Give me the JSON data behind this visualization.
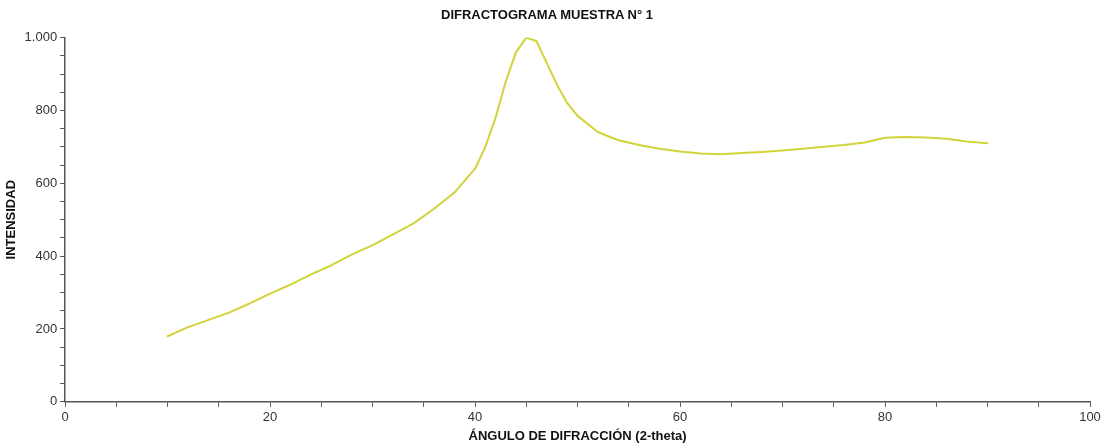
{
  "chart_data": {
    "type": "line",
    "title": "DIFRACTOGRAMA MUESTRA N° 1",
    "xlabel": "ÁNGULO DE DIFRACCIÓN (2-theta)",
    "ylabel": "INTENSIDAD",
    "series": [
      {
        "color": "#d2d23a",
        "x": [
          10,
          12,
          14,
          16,
          18,
          20,
          22,
          24,
          26,
          28,
          30,
          32,
          34,
          36,
          38,
          40,
          41,
          42,
          43,
          44,
          45,
          46,
          47,
          48,
          49,
          50,
          52,
          54,
          56,
          58,
          60,
          62,
          64,
          66,
          68,
          70,
          72,
          74,
          76,
          78,
          80,
          82,
          84,
          86,
          88,
          90
        ],
        "values": [
          180,
          205,
          225,
          245,
          270,
          297,
          322,
          350,
          375,
          405,
          430,
          460,
          490,
          530,
          575,
          640,
          700,
          780,
          880,
          960,
          1000,
          990,
          930,
          870,
          820,
          785,
          740,
          718,
          705,
          695,
          687,
          682,
          680,
          683,
          686,
          690,
          695,
          700,
          705,
          712,
          725,
          727,
          726,
          722,
          715,
          710
        ]
      }
    ],
    "xlim": [
      0,
      100
    ],
    "xticks": [
      0,
      {
        "value": 5,
        "label": null
      },
      20,
      {
        "value": 10,
        "label": null
      },
      {
        "value": 15,
        "label": null
      },
      {
        "value": 25,
        "label": null
      },
      {
        "value": 30,
        "label": null
      },
      {
        "value": 35,
        "label": null
      },
      40,
      {
        "value": 45,
        "label": null
      },
      {
        "value": 50,
        "label": null
      },
      {
        "value": 55,
        "label": null
      },
      60,
      {
        "value": 65,
        "label": null
      },
      {
        "value": 70,
        "label": null
      },
      {
        "value": 75,
        "label": null
      },
      80,
      {
        "value": 85,
        "label": null
      },
      {
        "value": 90,
        "label": null
      },
      {
        "value": 95,
        "label": null
      },
      100
    ],
    "ylim": [
      0,
      1000
    ],
    "yticks": [
      0,
      {
        "value": 50,
        "label": null
      },
      {
        "value": 100,
        "label": null
      },
      {
        "value": 150,
        "label": null
      },
      200,
      {
        "value": 250,
        "label": null
      },
      {
        "value": 300,
        "label": null
      },
      {
        "value": 350,
        "label": null
      },
      400,
      {
        "value": 450,
        "label": null
      },
      {
        "value": 500,
        "label": null
      },
      {
        "value": 550,
        "label": null
      },
      600,
      {
        "value": 650,
        "label": null
      },
      {
        "value": 700,
        "label": null
      },
      {
        "value": 750,
        "label": null
      },
      800,
      {
        "value": 850,
        "label": null
      },
      {
        "value": 900,
        "label": null
      },
      {
        "value": 950,
        "label": null
      },
      {
        "value": 1000,
        "label": "1.000"
      }
    ],
    "grid": false,
    "legend": false,
    "marker": "none",
    "line_style": "solid"
  }
}
